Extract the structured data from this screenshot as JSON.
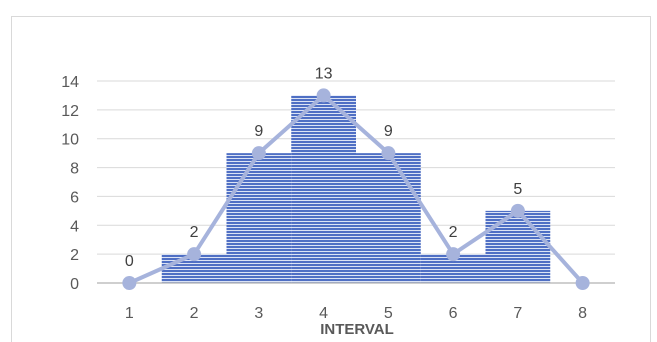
{
  "chart_data": {
    "type": "bar",
    "categories": [
      "1",
      "2",
      "3",
      "4",
      "5",
      "6",
      "7",
      "8"
    ],
    "series": [
      {
        "type": "bar",
        "values": [
          0,
          2,
          9,
          13,
          9,
          2,
          5,
          0
        ]
      },
      {
        "type": "line",
        "values": [
          0,
          2,
          9,
          13,
          9,
          2,
          5,
          0
        ]
      }
    ],
    "data_labels": [
      "0",
      "2",
      "9",
      "13",
      "9",
      "2",
      "5",
      ""
    ],
    "y_ticks": [
      0,
      2,
      4,
      6,
      8,
      10,
      12,
      14
    ],
    "ylim": [
      0,
      14
    ],
    "title": "",
    "xlabel": "INTERVAL",
    "ylabel": "",
    "grid": true,
    "legend": "none",
    "colors": {
      "bar_fill": "#4f6fc4",
      "bar_stripe": "#dbe3f5",
      "line": "#a6b3dc",
      "grid": "#d9d9d9",
      "axis": "#bfbfbf"
    }
  }
}
